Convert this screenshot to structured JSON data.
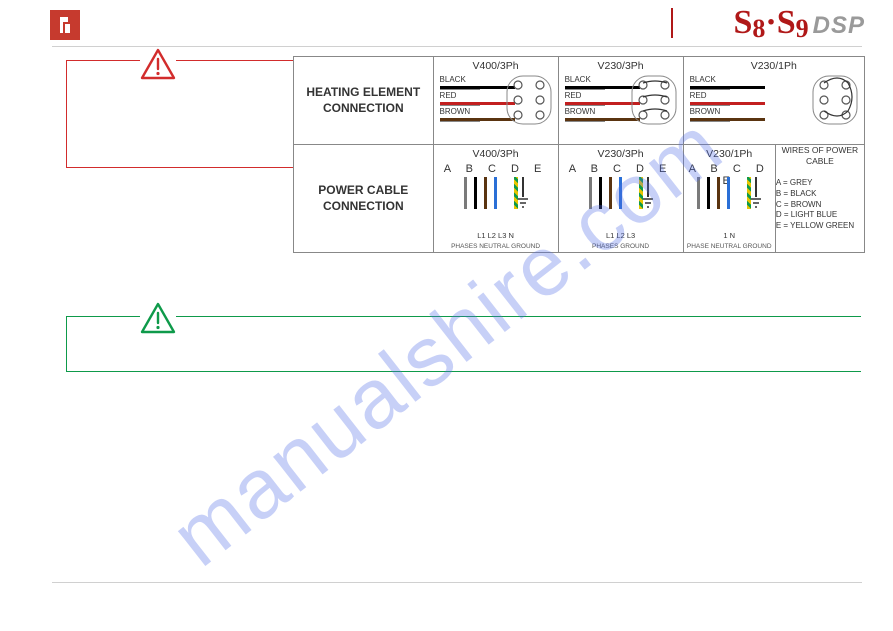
{
  "header": {
    "model_a": "S",
    "model_a_num": "8",
    "dot": "·",
    "model_b": "S",
    "model_b_num": "9",
    "suffix": "DSP"
  },
  "watermark": "manualshire.com",
  "sections": {
    "heating": {
      "label": "HEATING ELEMENT\nCONNECTION",
      "variants": [
        {
          "header": "V400/3Ph",
          "wires": [
            {
              "label": "BLACK",
              "color": "#000000"
            },
            {
              "label": "RED",
              "color": "#c21f1f"
            },
            {
              "label": "BROWN",
              "color": "#5a3410"
            }
          ],
          "jumpers": "3sep"
        },
        {
          "header": "V230/3Ph",
          "wires": [
            {
              "label": "BLACK",
              "color": "#000000"
            },
            {
              "label": "RED",
              "color": "#c21f1f"
            },
            {
              "label": "BROWN",
              "color": "#5a3410"
            }
          ],
          "jumpers": "linked"
        },
        {
          "header": "V230/1Ph",
          "wires": [
            {
              "label": "BLACK",
              "color": "#000000"
            },
            {
              "label": "RED",
              "color": "#c21f1f"
            },
            {
              "label": "BROWN",
              "color": "#5a3410"
            }
          ],
          "jumpers": "all"
        }
      ]
    },
    "power": {
      "label": "POWER CABLE\nCONNECTION",
      "variants": [
        {
          "header": "V400/3Ph",
          "letters": "A B C D  E",
          "wires": [
            {
              "color": "#7a7a7a"
            },
            {
              "color": "#000000"
            },
            {
              "color": "#5a3410"
            },
            {
              "color": "#2a6fd6"
            },
            {
              "color": "stripe"
            }
          ],
          "bottom1": "L1 L2 L3  N",
          "bottom2": "PHASES   NEUTRAL  GROUND"
        },
        {
          "header": "V230/3Ph",
          "letters": "A B C D  E",
          "wires": [
            {
              "color": "#7a7a7a"
            },
            {
              "color": "#000000"
            },
            {
              "color": "#5a3410"
            },
            {
              "color": "#2a6fd6"
            },
            {
              "color": "stripe"
            }
          ],
          "bottom1": "L1 L2 L3",
          "bottom2": "PHASES        GROUND"
        },
        {
          "header": "V230/1Ph",
          "letters": "A B C D  E",
          "wires": [
            {
              "color": "#7a7a7a"
            },
            {
              "color": "#000000"
            },
            {
              "color": "#5a3410"
            },
            {
              "color": "#2a6fd6"
            },
            {
              "color": "stripe"
            }
          ],
          "bottom1": "1  N",
          "bottom2": "PHASE NEUTRAL  GROUND"
        }
      ],
      "legend": {
        "header": "WIRES OF POWER CABLE",
        "rows": [
          "A = GREY",
          "B = BLACK",
          "C = BROWN",
          "D = LIGHT BLUE",
          "E = YELLOW GREEN"
        ]
      }
    }
  },
  "icons": {
    "warning_red_stroke": "#d22c2c",
    "warning_green_stroke": "#0e9a4a"
  },
  "colors": {
    "stripe_a": "#e8c500",
    "stripe_b": "#0e9a4a"
  }
}
